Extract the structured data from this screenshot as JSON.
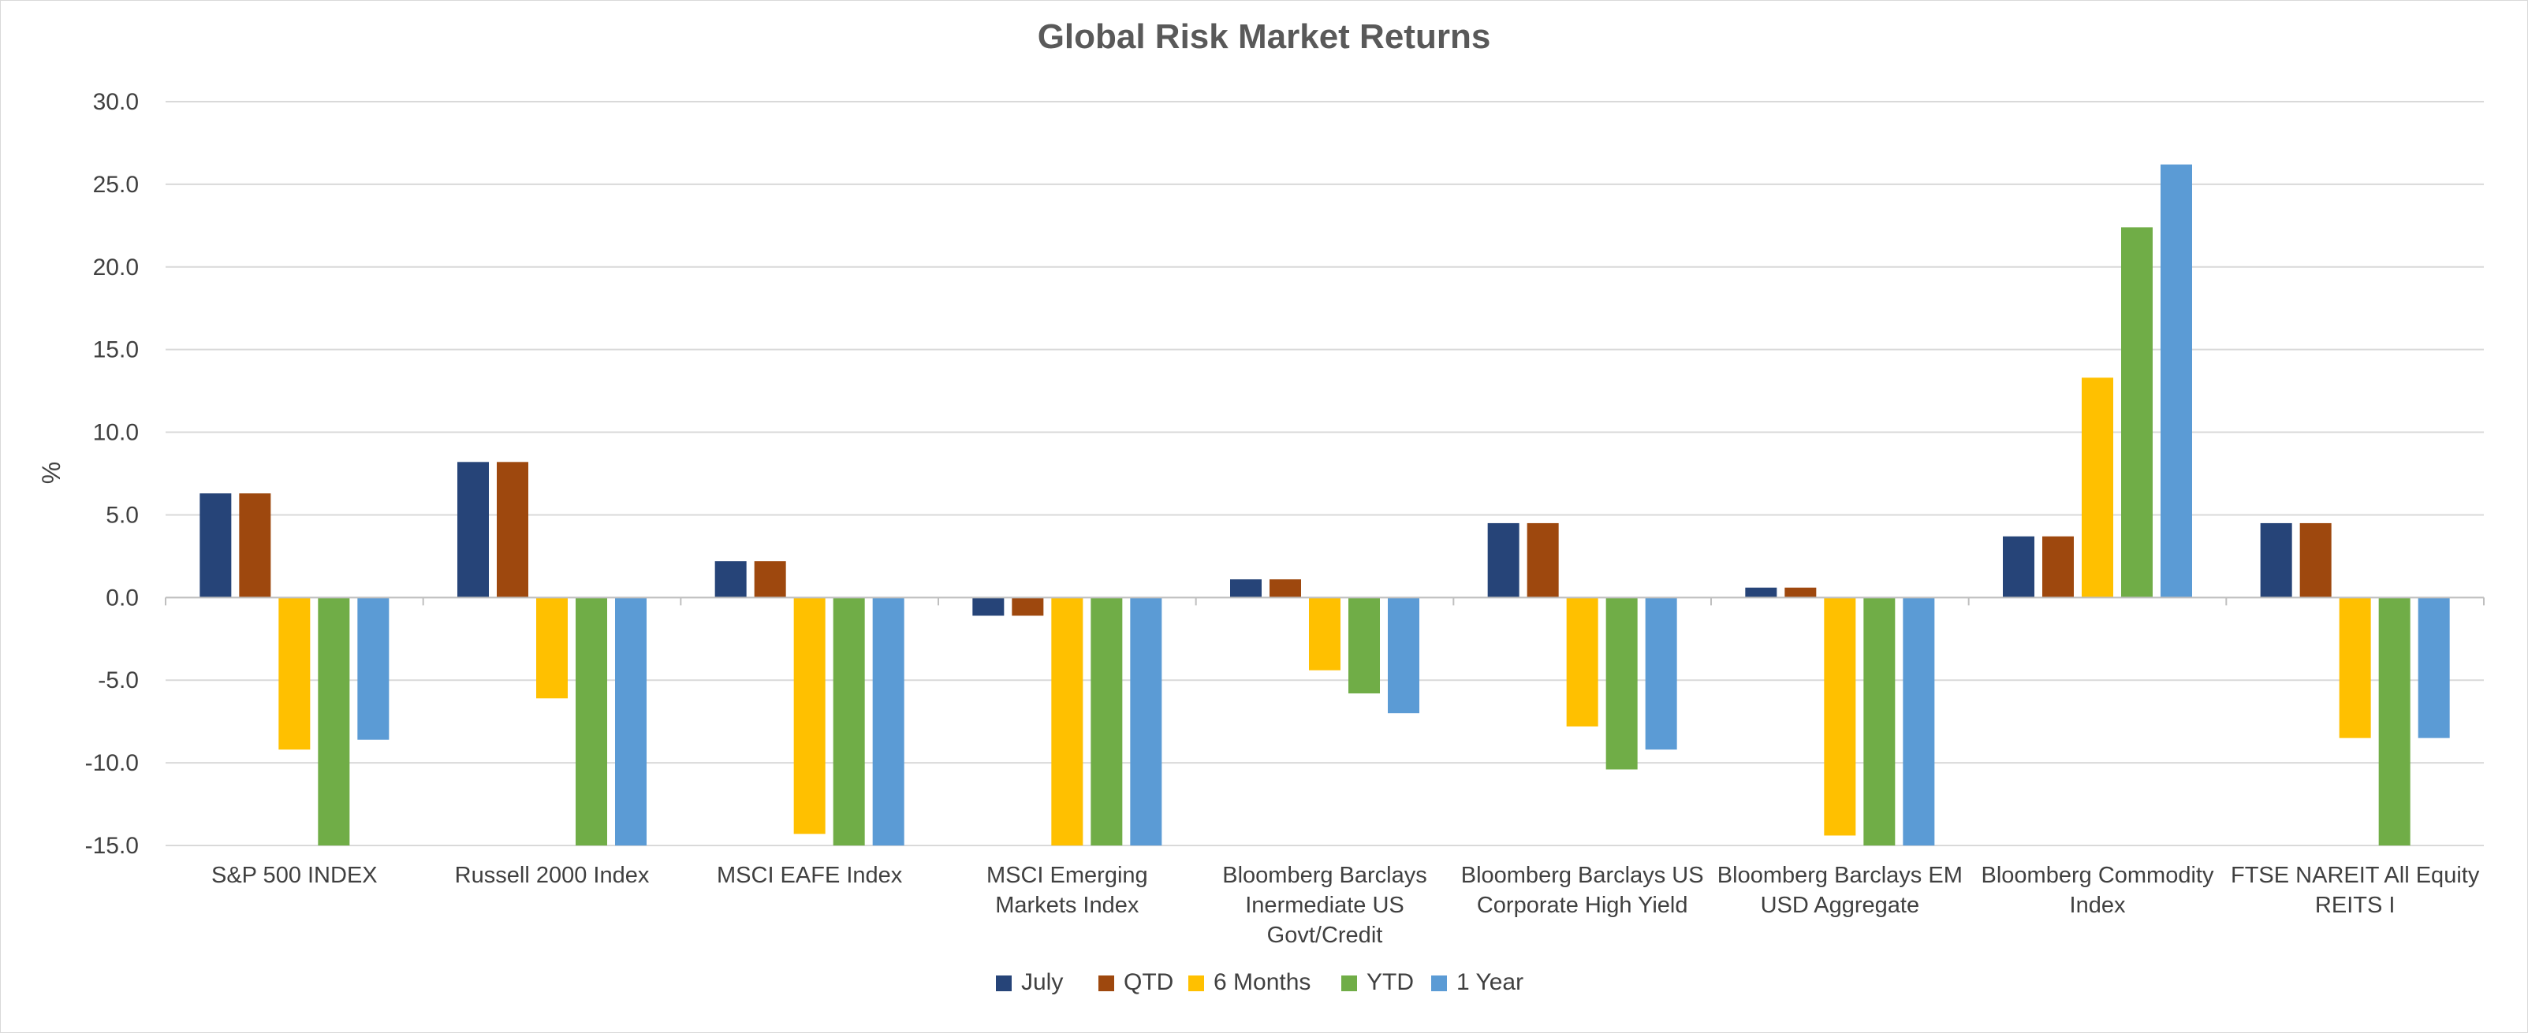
{
  "chart_data": {
    "type": "bar",
    "title": "Global Risk Market Returns",
    "xlabel": "",
    "ylabel": "%",
    "ylim": [
      -15,
      30
    ],
    "yticks": [
      "30.0",
      "25.0",
      "20.0",
      "15.0",
      "10.0",
      "5.0",
      "0.0",
      "-5.0",
      "-10.0",
      "-15.0"
    ],
    "grid": true,
    "legend_position": "bottom",
    "categories": [
      [
        "S&P 500 INDEX"
      ],
      [
        "Russell 2000 Index"
      ],
      [
        "MSCI EAFE Index"
      ],
      [
        "MSCI Emerging",
        "Markets Index"
      ],
      [
        "Bloomberg Barclays",
        "Inermediate US",
        "Govt/Credit"
      ],
      [
        "Bloomberg Barclays US",
        "Corporate High Yield"
      ],
      [
        "Bloomberg Barclays EM",
        "USD Aggregate"
      ],
      [
        "Bloomberg Commodity",
        "Index"
      ],
      [
        "FTSE NAREIT All Equity",
        "REITS I"
      ]
    ],
    "series": [
      {
        "name": "July",
        "color": "#264478",
        "values": [
          6.3,
          8.2,
          2.2,
          -1.1,
          1.1,
          4.5,
          0.6,
          3.7,
          4.5
        ]
      },
      {
        "name": "QTD",
        "color": "#9e480e",
        "values": [
          6.3,
          8.2,
          2.2,
          -1.1,
          1.1,
          4.5,
          0.6,
          3.7,
          4.5
        ]
      },
      {
        "name": "6 Months",
        "color": "#ffc000",
        "values": [
          -9.2,
          -6.1,
          -14.3,
          -15,
          -4.4,
          -7.8,
          -14.4,
          13.3,
          -8.5
        ]
      },
      {
        "name": "YTD",
        "color": "#70ad47",
        "values": [
          -15,
          -15,
          -15,
          -15,
          -5.8,
          -10.4,
          -15,
          22.4,
          -15
        ]
      },
      {
        "name": "1 Year",
        "color": "#5b9bd5",
        "values": [
          -8.6,
          -15,
          -15,
          -15,
          -7,
          -9.2,
          -15,
          26.2,
          -8.5
        ]
      }
    ]
  }
}
